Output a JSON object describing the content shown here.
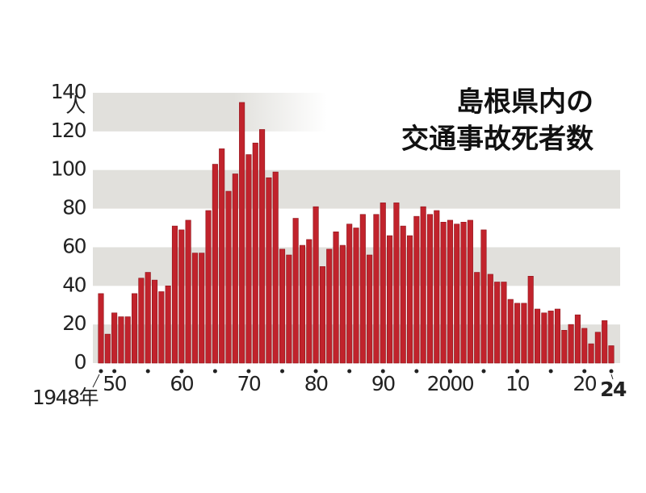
{
  "chart_data": {
    "type": "bar",
    "title": [
      "島根県内の",
      "交通事故死者数"
    ],
    "y_unit": "人",
    "categories": [
      "1948年",
      null,
      "50",
      null,
      null,
      null,
      null,
      null,
      null,
      null,
      null,
      null,
      "60",
      null,
      null,
      null,
      null,
      null,
      null,
      null,
      null,
      null,
      "70",
      null,
      null,
      null,
      null,
      null,
      null,
      null,
      null,
      null,
      "80",
      null,
      null,
      null,
      null,
      null,
      null,
      null,
      null,
      null,
      "90",
      null,
      null,
      null,
      null,
      null,
      null,
      null,
      null,
      null,
      "2000",
      null,
      null,
      null,
      null,
      null,
      null,
      null,
      null,
      null,
      "10",
      null,
      null,
      null,
      null,
      null,
      null,
      null,
      null,
      null,
      "20",
      null,
      null,
      null,
      "24"
    ],
    "values": [
      36,
      15,
      26,
      24,
      24,
      36,
      44,
      47,
      43,
      37,
      40,
      71,
      69,
      74,
      57,
      57,
      79,
      103,
      111,
      89,
      98,
      135,
      108,
      114,
      121,
      96,
      99,
      59,
      56,
      75,
      61,
      64,
      81,
      50,
      59,
      68,
      61,
      72,
      70,
      77,
      56,
      77,
      83,
      66,
      83,
      71,
      66,
      76,
      81,
      77,
      79,
      73,
      74,
      72,
      73,
      74,
      47,
      69,
      46,
      42,
      42,
      33,
      31,
      31,
      45,
      28,
      26,
      27,
      28,
      17,
      20,
      25,
      18,
      10,
      16,
      22,
      9
    ],
    "color": "#c1232c",
    "ylim": [
      0,
      140
    ],
    "yticks": [
      0,
      20,
      40,
      60,
      80,
      100,
      120,
      140
    ]
  }
}
